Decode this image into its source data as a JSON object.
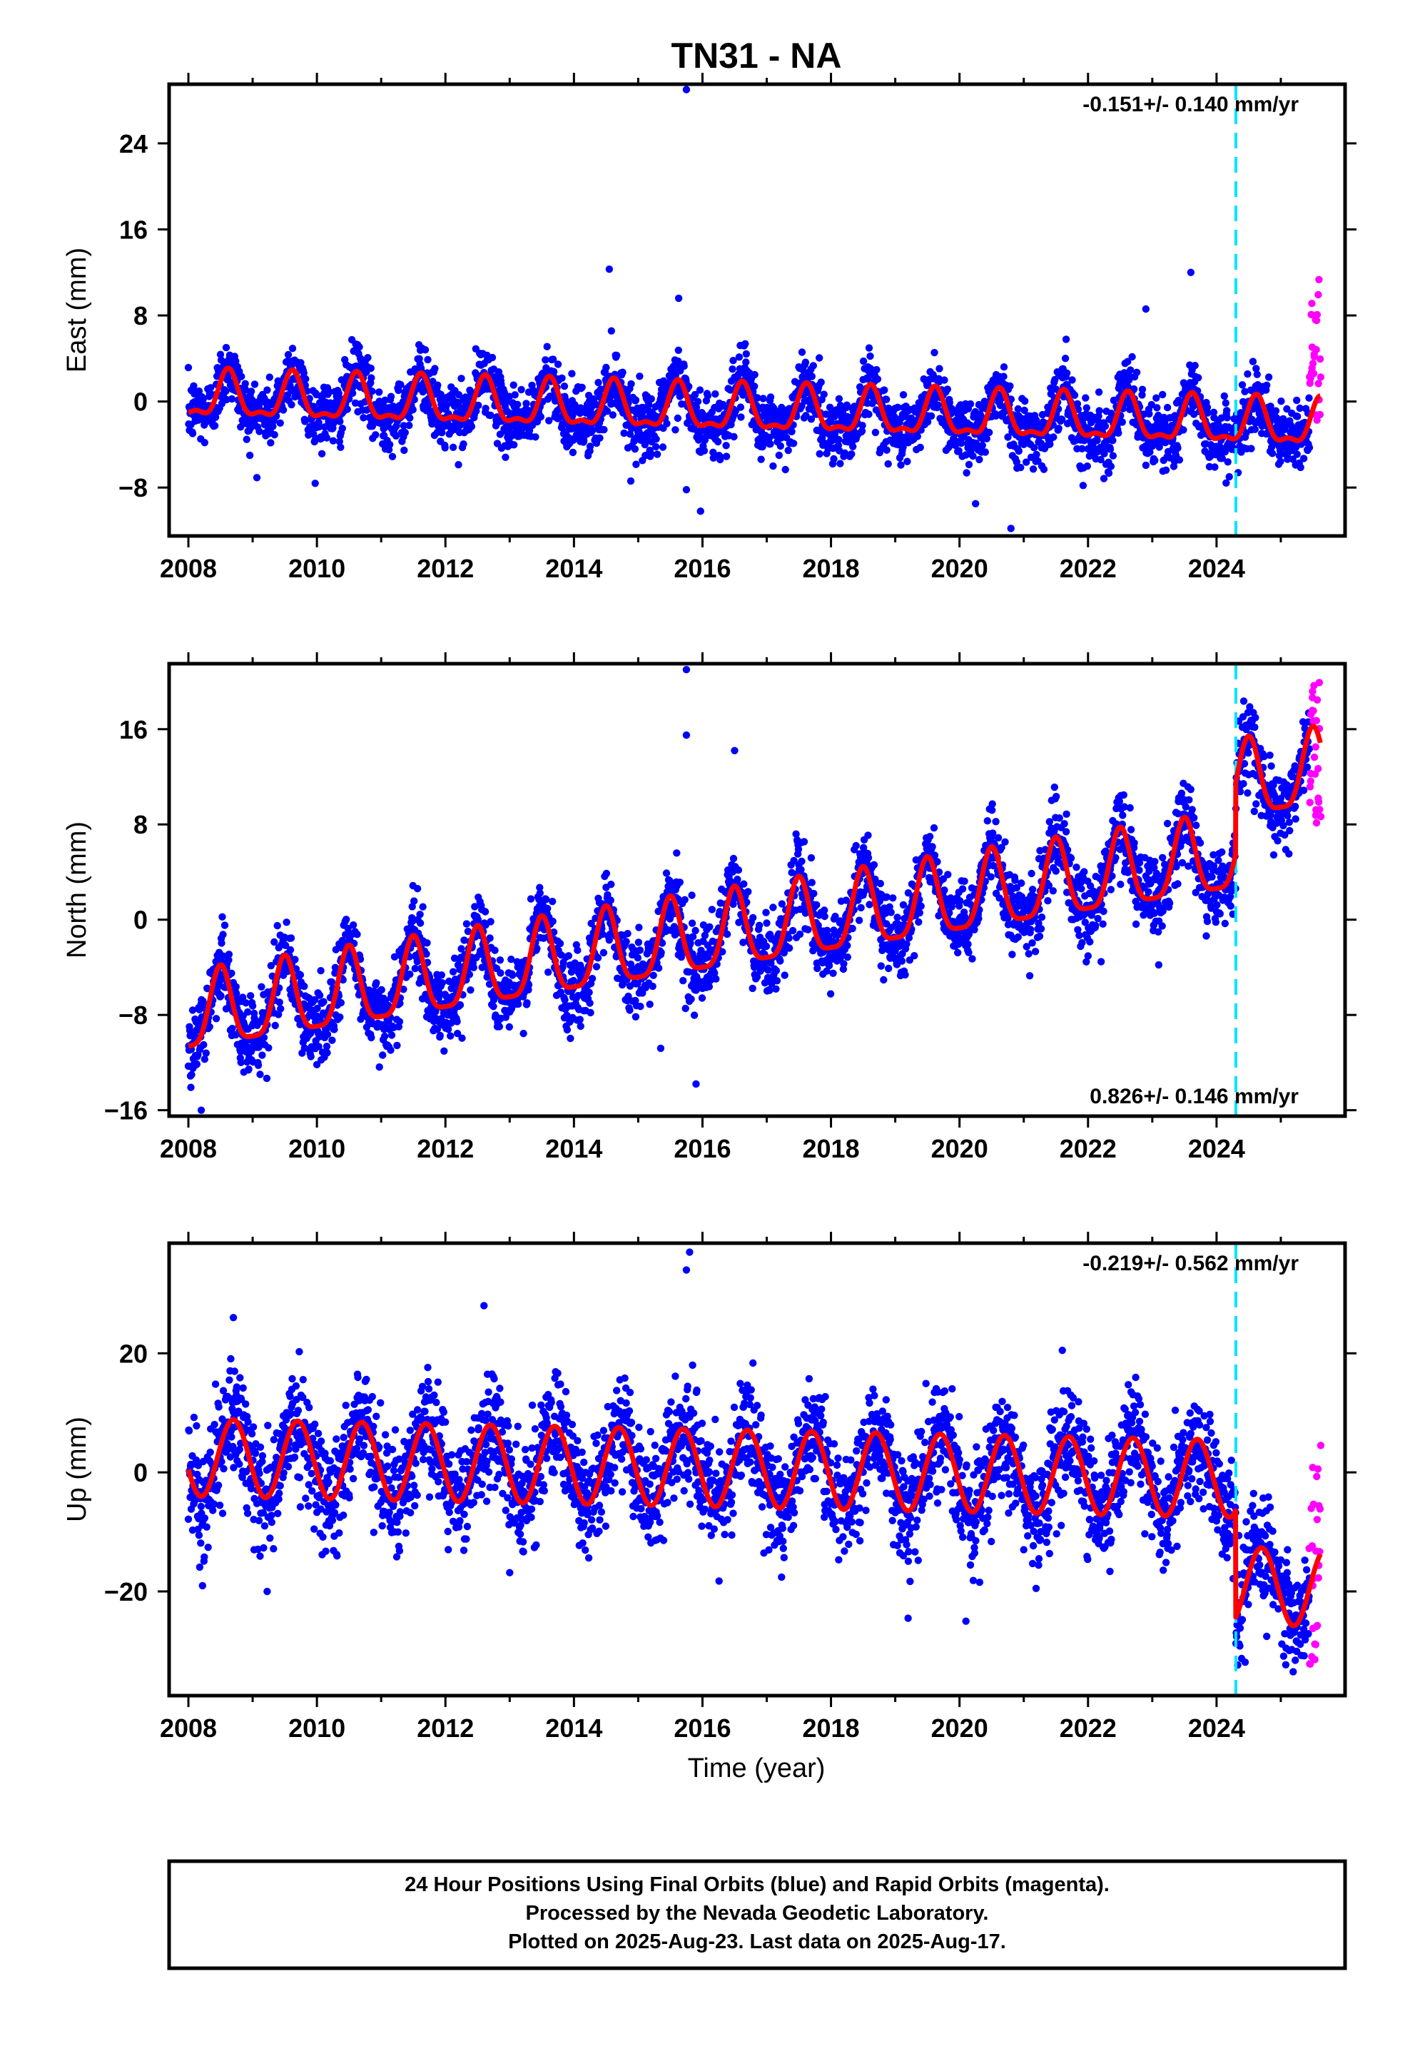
{
  "title": "TN31 - NA",
  "xlabel": "Time (year)",
  "colors": {
    "final_orbits": "#0000ff",
    "rapid_orbits": "#ff00ff",
    "model": "#ff0000",
    "event": "#00e5ff",
    "frame": "#000000"
  },
  "footer": {
    "line1": "24 Hour Positions Using Final Orbits (blue) and Rapid Orbits (magenta).",
    "line2": "Processed by the Nevada Geodetic Laboratory.",
    "line3": "Plotted on 2025-Aug-23. Last data on 2025-Aug-17."
  },
  "chart_data": [
    {
      "type": "scatter",
      "component": "east",
      "ylabel": "East (mm)",
      "rate_label": "-0.151+/- 0.140 mm/yr",
      "rate_position": "top-right",
      "xlim": [
        2007.7,
        2026.0
      ],
      "ylim": [
        -12.5,
        29.5
      ],
      "xticks": [
        2008,
        2010,
        2012,
        2014,
        2016,
        2018,
        2020,
        2022,
        2024
      ],
      "yticks": [
        -8,
        0,
        8,
        16,
        24
      ],
      "event_line_x": 2024.3,
      "model": {
        "slope": -0.151,
        "intercept": 0.4,
        "annual_amplitude": 2.0,
        "annual_phase_peak": 0.62,
        "semiannual_amplitude": 0.8
      },
      "scatter": {
        "sigma": 1.5
      },
      "rapid_points": {
        "x_range": [
          2025.45,
          2025.62
        ],
        "y_range": [
          -2,
          11.5
        ]
      },
      "outliers": [
        [
          2015.75,
          29
        ],
        [
          2015.97,
          -10.2
        ],
        [
          2014.55,
          12.3
        ],
        [
          2015.63,
          9.6
        ],
        [
          2015.75,
          -8.2
        ],
        [
          2020.25,
          -9.5
        ],
        [
          2020.8,
          -11.8
        ],
        [
          2023.6,
          12
        ],
        [
          2022.9,
          8.6
        ]
      ],
      "grid": false
    },
    {
      "type": "scatter",
      "component": "north",
      "ylabel": "North (mm)",
      "rate_label": "0.826+/- 0.146 mm/yr",
      "rate_position": "bottom-right",
      "xlim": [
        2007.7,
        2026.0
      ],
      "ylim": [
        -16.5,
        21.5
      ],
      "xticks": [
        2008,
        2010,
        2012,
        2014,
        2016,
        2018,
        2020,
        2022,
        2024
      ],
      "yticks": [
        -16,
        -8,
        0,
        8,
        16
      ],
      "event_line_x": 2024.3,
      "model": {
        "slope": 0.826,
        "intercept": -8.2,
        "annual_amplitude": 3.2,
        "annual_phase_peak": 0.5,
        "semiannual_amplitude": 0.8,
        "offset_at_event": 6.0
      },
      "scatter": {
        "sigma": 1.6
      },
      "rapid_points": {
        "x_range": [
          2025.45,
          2025.62
        ],
        "y_range": [
          8,
          20
        ]
      },
      "outliers": [
        [
          2015.75,
          21
        ],
        [
          2015.75,
          15.5
        ],
        [
          2016.5,
          14.2
        ],
        [
          2015.35,
          -10.8
        ],
        [
          2015.9,
          -13.8
        ],
        [
          2008.2,
          -16
        ],
        [
          2023.1,
          -3.8
        ]
      ],
      "grid": false
    },
    {
      "type": "scatter",
      "component": "up",
      "ylabel": "Up (mm)",
      "rate_label": "-0.219+/- 0.562 mm/yr",
      "rate_position": "top-right",
      "xlim": [
        2007.7,
        2026.0
      ],
      "ylim": [
        -37.5,
        38.5
      ],
      "xticks": [
        2008,
        2010,
        2012,
        2014,
        2016,
        2018,
        2020,
        2022,
        2024
      ],
      "yticks": [
        -20,
        0,
        20
      ],
      "event_line_x": 2024.3,
      "model": {
        "slope": -0.219,
        "intercept": 2.5,
        "annual_amplitude": 6.5,
        "annual_phase_peak": 0.7,
        "semiannual_amplitude": 0,
        "offset_at_event": -18.0
      },
      "scatter": {
        "sigma": 4.5
      },
      "rapid_points": {
        "x_range": [
          2025.45,
          2025.62
        ],
        "y_range": [
          -34,
          5
        ]
      },
      "outliers": [
        [
          2015.8,
          37
        ],
        [
          2015.75,
          34
        ],
        [
          2008.7,
          26
        ],
        [
          2012.6,
          28
        ],
        [
          2021.6,
          20.5
        ],
        [
          2019.2,
          -24.5
        ],
        [
          2020.1,
          -25
        ]
      ],
      "grid": false
    }
  ]
}
